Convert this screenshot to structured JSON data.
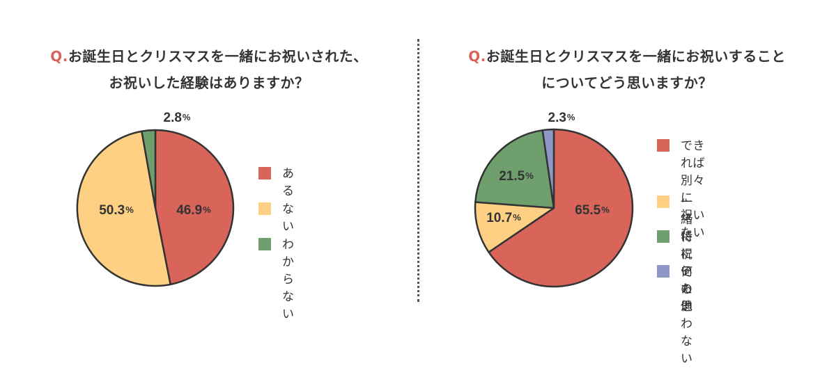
{
  "colors": {
    "red": "#d9645a",
    "yellow": "#fdd084",
    "green": "#6f9f6d",
    "blue": "#8f97c6",
    "outline": "#333333"
  },
  "chart_data": [
    {
      "type": "pie",
      "title": {
        "prefix": "Q.",
        "line1": "お誕生日とクリスマスを一緒にお祝いされた、",
        "line2": "お祝いした経験はありますか？"
      },
      "slices": [
        {
          "name": "ある",
          "value": 46.9,
          "color": "#d9645a",
          "label": "46.9",
          "unit": "%"
        },
        {
          "name": "ない",
          "value": 50.3,
          "color": "#fdd084",
          "label": "50.3",
          "unit": "%"
        },
        {
          "name": "わからない",
          "value": 2.8,
          "color": "#6f9f6d",
          "label": "2.8",
          "unit": "%"
        }
      ],
      "legend": [
        "ある",
        "ない",
        "わからない"
      ],
      "legend_position": "right"
    },
    {
      "type": "pie",
      "title": {
        "prefix": "Q.",
        "line1": "お誕生日とクリスマスを一緒にお祝いすること",
        "line2": "についてどう思いますか？"
      },
      "slices": [
        {
          "name": "できれば別々に\n祝いたい",
          "value": 65.5,
          "color": "#d9645a",
          "label": "65.5",
          "unit": "%"
        },
        {
          "name": "一緒に祝いたい",
          "value": 10.7,
          "color": "#fdd084",
          "label": "10.7",
          "unit": "%"
        },
        {
          "name": "特に何も思わない",
          "value": 21.5,
          "color": "#6f9f6d",
          "label": "21.5",
          "unit": "%"
        },
        {
          "name": "その他",
          "value": 2.3,
          "color": "#8f97c6",
          "label": "2.3",
          "unit": "%"
        }
      ],
      "legend": [
        "できれば別々に\n祝いたい",
        "一緒に祝いたい",
        "特に何も思わない",
        "その他"
      ],
      "legend_position": "right"
    }
  ]
}
